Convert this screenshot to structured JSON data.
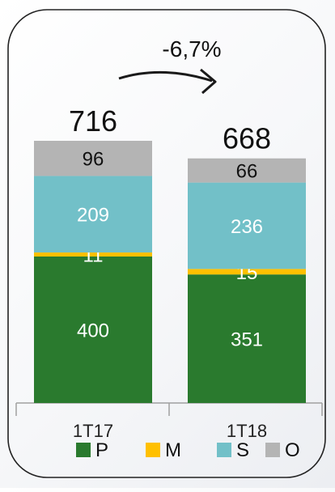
{
  "chart_data": {
    "type": "bar",
    "stacked": true,
    "categories": [
      "1T17",
      "1T18"
    ],
    "series": [
      {
        "name": "P",
        "values": [
          400,
          351
        ],
        "color": "#2a7a2e"
      },
      {
        "name": "M",
        "values": [
          11,
          15
        ],
        "color": "#ffc000"
      },
      {
        "name": "S",
        "values": [
          209,
          236
        ],
        "color": "#72c0c8"
      },
      {
        "name": "O",
        "values": [
          96,
          66
        ],
        "color": "#b4b4b4"
      }
    ],
    "totals": [
      "716",
      "668"
    ],
    "value_labels": [
      [
        "400",
        "11",
        "209",
        "96"
      ],
      [
        "351",
        "15",
        "236",
        "66"
      ]
    ],
    "annotation": "-6,7%",
    "legend_position": "bottom",
    "grid": false
  }
}
